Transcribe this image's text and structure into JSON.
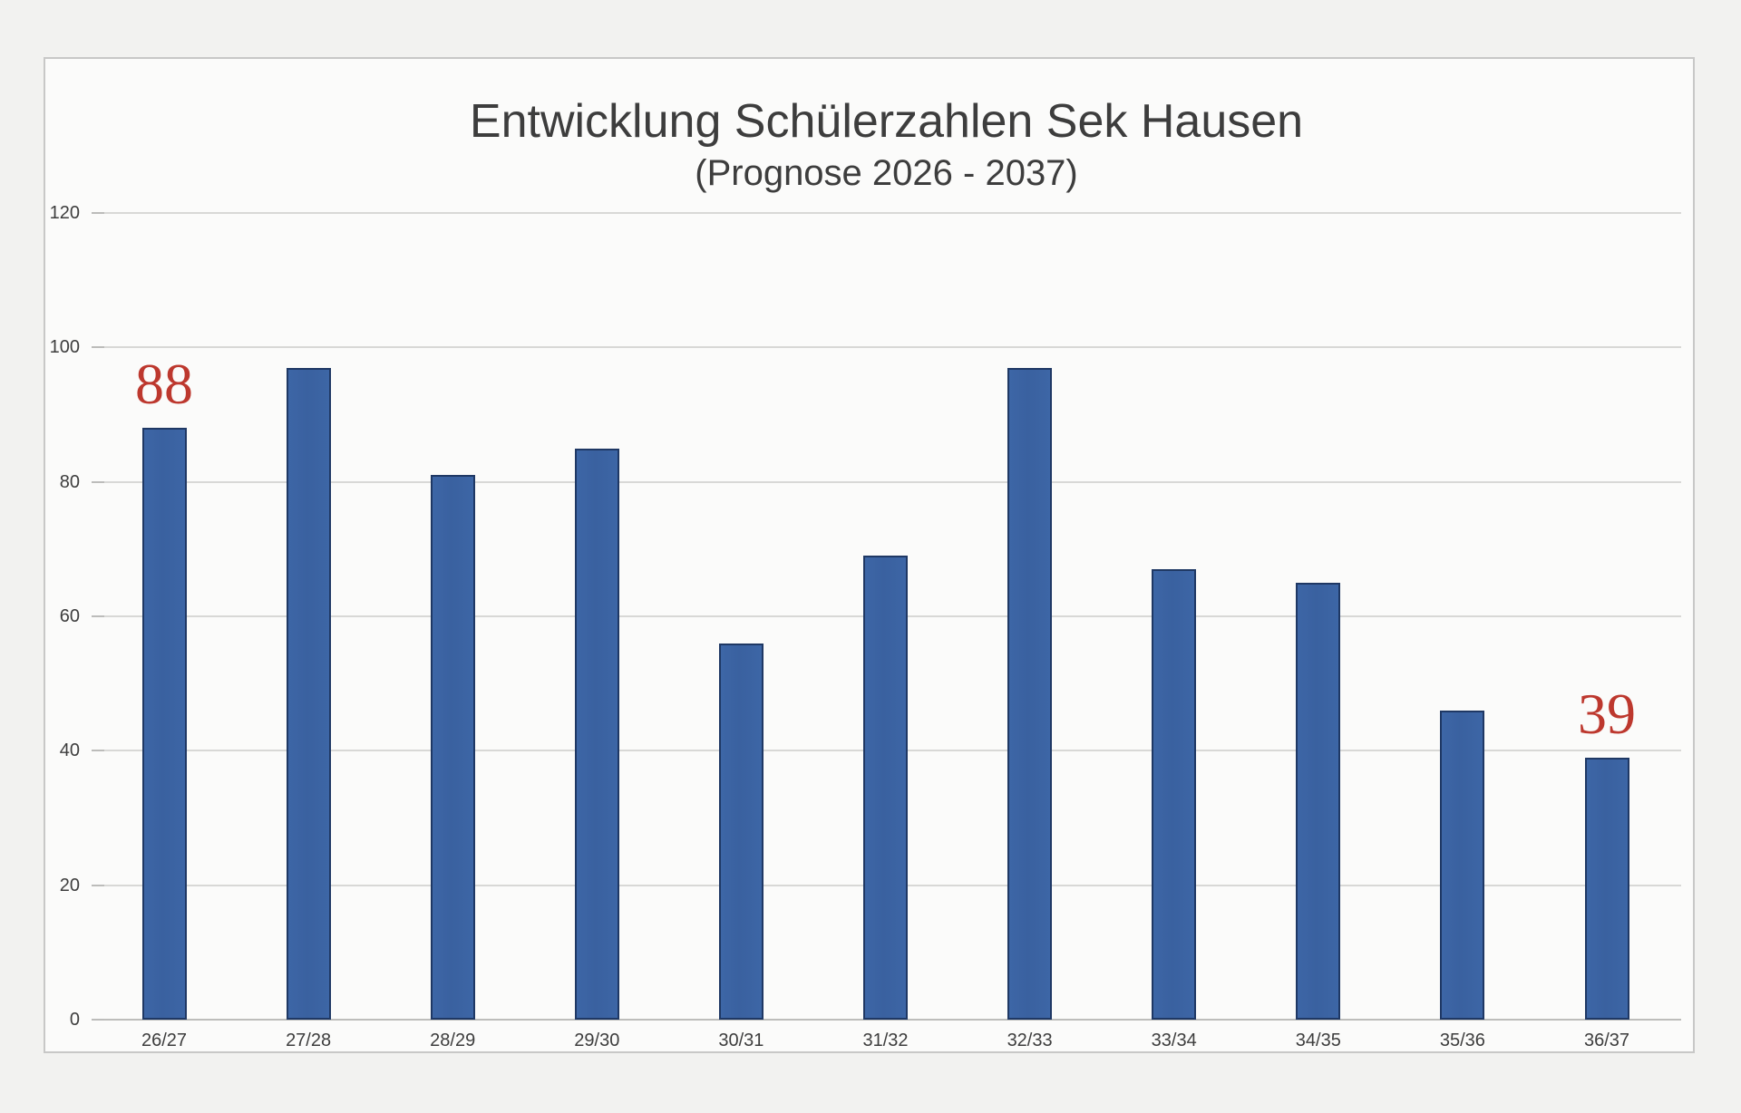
{
  "page": {
    "background_color": "#f2f2f0",
    "panel_background_color": "#fbfbfa",
    "panel_border_color": "#c8c8c7"
  },
  "chart_data": {
    "type": "bar",
    "title": "Entwicklung Schülerzahlen Sek Hausen",
    "subtitle": "(Prognose 2026 - 2037)",
    "categories": [
      "26/27",
      "27/28",
      "28/29",
      "29/30",
      "30/31",
      "31/32",
      "32/33",
      "33/34",
      "34/35",
      "35/36",
      "36/37"
    ],
    "values": [
      88,
      97,
      81,
      85,
      56,
      69,
      97,
      67,
      65,
      46,
      39
    ],
    "xlabel": "",
    "ylabel": "",
    "ylim": [
      0,
      120
    ],
    "yticks": [
      0,
      20,
      40,
      60,
      80,
      100,
      120
    ],
    "grid": true,
    "legend": "none",
    "bar_color": "#3b63a2",
    "bar_border_color": "#1f3864",
    "gridline_color": "#d8d8d6",
    "text_color": "#3d3d3d",
    "annotation_color": "#bd382e",
    "annotations": [
      {
        "category_index": 0,
        "text": "88"
      },
      {
        "category_index": 10,
        "text": "39"
      }
    ]
  }
}
